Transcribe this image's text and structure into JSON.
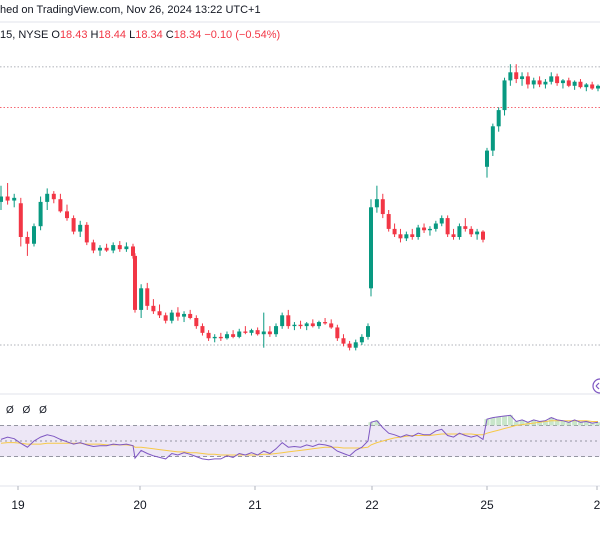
{
  "header": {
    "published_text": "hed on TradingView.com, Nov 26, 2024 13:22 UTC+1"
  },
  "ohlc": {
    "symbol_text": "15, NYSE",
    "o_label": "O",
    "o_value": "18.43",
    "h_label": "H",
    "h_value": "18.44",
    "l_label": "L",
    "l_value": "18.34",
    "c_label": "C",
    "c_value": "18.34",
    "change_text": "−0.10 (−0.54%)"
  },
  "oscillator": {
    "values_text": "Ø Ø Ø"
  },
  "colors": {
    "up": "#089981",
    "down": "#f23645",
    "rsi_line": "#7e57c2",
    "rsi_ma": "#f7c948",
    "band_fill": "#ede7f6"
  },
  "chart_data": {
    "type": "candlestick",
    "x_tick_labels": [
      "19",
      "20",
      "21",
      "22",
      "25",
      "2"
    ],
    "candles": [
      {
        "o": 25.6,
        "h": 26.8,
        "l": 25.0,
        "c": 26.0
      },
      {
        "o": 26.0,
        "h": 27.0,
        "l": 25.4,
        "c": 25.7
      },
      {
        "o": 25.7,
        "h": 26.2,
        "l": 25.2,
        "c": 25.9
      },
      {
        "o": 25.5,
        "h": 25.9,
        "l": 22.3,
        "c": 23.0
      },
      {
        "o": 23.0,
        "h": 23.4,
        "l": 21.6,
        "c": 22.5
      },
      {
        "o": 22.5,
        "h": 24.0,
        "l": 22.3,
        "c": 23.8
      },
      {
        "o": 23.8,
        "h": 26.0,
        "l": 23.5,
        "c": 25.6
      },
      {
        "o": 25.6,
        "h": 26.6,
        "l": 25.0,
        "c": 26.2
      },
      {
        "o": 26.2,
        "h": 26.4,
        "l": 25.5,
        "c": 25.8
      },
      {
        "o": 25.8,
        "h": 26.2,
        "l": 24.8,
        "c": 24.9
      },
      {
        "o": 24.9,
        "h": 25.4,
        "l": 24.2,
        "c": 24.4
      },
      {
        "o": 24.4,
        "h": 24.6,
        "l": 23.2,
        "c": 23.4
      },
      {
        "o": 23.4,
        "h": 24.2,
        "l": 23.0,
        "c": 23.9
      },
      {
        "o": 23.9,
        "h": 24.1,
        "l": 22.4,
        "c": 22.6
      },
      {
        "o": 22.6,
        "h": 22.8,
        "l": 21.8,
        "c": 22.0
      },
      {
        "o": 22.0,
        "h": 22.4,
        "l": 21.6,
        "c": 22.2
      },
      {
        "o": 22.2,
        "h": 22.5,
        "l": 21.9,
        "c": 22.0
      },
      {
        "o": 22.0,
        "h": 22.6,
        "l": 21.8,
        "c": 22.4
      },
      {
        "o": 22.4,
        "h": 22.7,
        "l": 21.9,
        "c": 22.1
      },
      {
        "o": 22.1,
        "h": 22.6,
        "l": 21.9,
        "c": 22.3
      },
      {
        "o": 22.3,
        "h": 22.5,
        "l": 21.4,
        "c": 21.6
      },
      {
        "o": 21.6,
        "h": 21.8,
        "l": 17.4,
        "c": 17.6
      },
      {
        "o": 17.6,
        "h": 19.5,
        "l": 17.0,
        "c": 19.2
      },
      {
        "o": 19.2,
        "h": 19.6,
        "l": 17.6,
        "c": 17.9
      },
      {
        "o": 17.9,
        "h": 18.4,
        "l": 17.3,
        "c": 17.5
      },
      {
        "o": 17.5,
        "h": 18.0,
        "l": 17.0,
        "c": 17.2
      },
      {
        "o": 17.2,
        "h": 17.4,
        "l": 16.6,
        "c": 16.8
      },
      {
        "o": 16.8,
        "h": 17.6,
        "l": 16.6,
        "c": 17.4
      },
      {
        "o": 17.4,
        "h": 17.8,
        "l": 16.8,
        "c": 17.1
      },
      {
        "o": 17.1,
        "h": 17.5,
        "l": 16.7,
        "c": 17.3
      },
      {
        "o": 17.3,
        "h": 17.6,
        "l": 16.9,
        "c": 17.0
      },
      {
        "o": 17.0,
        "h": 17.2,
        "l": 16.2,
        "c": 16.4
      },
      {
        "o": 16.4,
        "h": 16.6,
        "l": 15.7,
        "c": 15.9
      },
      {
        "o": 15.9,
        "h": 16.1,
        "l": 15.3,
        "c": 15.5
      },
      {
        "o": 15.5,
        "h": 15.8,
        "l": 15.2,
        "c": 15.6
      },
      {
        "o": 15.6,
        "h": 15.9,
        "l": 15.3,
        "c": 15.5
      },
      {
        "o": 15.5,
        "h": 16.0,
        "l": 15.4,
        "c": 15.8
      },
      {
        "o": 15.8,
        "h": 16.1,
        "l": 15.5,
        "c": 15.6
      },
      {
        "o": 15.6,
        "h": 16.2,
        "l": 15.5,
        "c": 16.0
      },
      {
        "o": 16.0,
        "h": 16.4,
        "l": 15.8,
        "c": 15.9
      },
      {
        "o": 15.9,
        "h": 16.2,
        "l": 15.7,
        "c": 16.1
      },
      {
        "o": 16.1,
        "h": 16.3,
        "l": 15.7,
        "c": 15.8
      },
      {
        "o": 15.8,
        "h": 17.4,
        "l": 14.8,
        "c": 16.0
      },
      {
        "o": 16.0,
        "h": 16.4,
        "l": 15.6,
        "c": 15.8
      },
      {
        "o": 15.8,
        "h": 16.6,
        "l": 15.6,
        "c": 16.4
      },
      {
        "o": 16.4,
        "h": 17.4,
        "l": 16.2,
        "c": 17.2
      },
      {
        "o": 17.2,
        "h": 17.6,
        "l": 16.2,
        "c": 16.4
      },
      {
        "o": 16.4,
        "h": 16.7,
        "l": 16.1,
        "c": 16.5
      },
      {
        "o": 16.5,
        "h": 16.8,
        "l": 16.2,
        "c": 16.4
      },
      {
        "o": 16.4,
        "h": 16.7,
        "l": 16.1,
        "c": 16.6
      },
      {
        "o": 16.6,
        "h": 16.9,
        "l": 16.3,
        "c": 16.4
      },
      {
        "o": 16.4,
        "h": 16.8,
        "l": 16.2,
        "c": 16.7
      },
      {
        "o": 16.7,
        "h": 17.0,
        "l": 16.5,
        "c": 16.6
      },
      {
        "o": 16.6,
        "h": 16.9,
        "l": 16.2,
        "c": 16.3
      },
      {
        "o": 16.3,
        "h": 16.5,
        "l": 15.3,
        "c": 15.5
      },
      {
        "o": 15.5,
        "h": 15.8,
        "l": 14.9,
        "c": 15.1
      },
      {
        "o": 15.1,
        "h": 15.3,
        "l": 14.6,
        "c": 14.8
      },
      {
        "o": 14.8,
        "h": 15.4,
        "l": 14.6,
        "c": 15.2
      },
      {
        "o": 15.2,
        "h": 15.8,
        "l": 15.0,
        "c": 15.6
      },
      {
        "o": 15.6,
        "h": 16.6,
        "l": 15.4,
        "c": 16.4
      },
      {
        "o": 19.2,
        "h": 25.8,
        "l": 18.6,
        "c": 25.2
      },
      {
        "o": 25.2,
        "h": 26.8,
        "l": 24.8,
        "c": 25.8
      },
      {
        "o": 25.8,
        "h": 26.2,
        "l": 24.4,
        "c": 24.7
      },
      {
        "o": 24.7,
        "h": 25.0,
        "l": 23.4,
        "c": 23.6
      },
      {
        "o": 23.6,
        "h": 24.0,
        "l": 23.0,
        "c": 23.2
      },
      {
        "o": 23.2,
        "h": 23.6,
        "l": 22.6,
        "c": 22.9
      },
      {
        "o": 22.9,
        "h": 23.4,
        "l": 22.7,
        "c": 23.2
      },
      {
        "o": 23.2,
        "h": 23.6,
        "l": 22.8,
        "c": 23.0
      },
      {
        "o": 23.0,
        "h": 23.9,
        "l": 22.8,
        "c": 23.7
      },
      {
        "o": 23.7,
        "h": 24.0,
        "l": 23.3,
        "c": 23.5
      },
      {
        "o": 23.5,
        "h": 23.8,
        "l": 23.1,
        "c": 23.6
      },
      {
        "o": 23.6,
        "h": 24.2,
        "l": 23.4,
        "c": 24.0
      },
      {
        "o": 24.0,
        "h": 24.6,
        "l": 23.8,
        "c": 24.4
      },
      {
        "o": 24.4,
        "h": 24.6,
        "l": 23.0,
        "c": 23.2
      },
      {
        "o": 23.2,
        "h": 23.6,
        "l": 22.8,
        "c": 23.0
      },
      {
        "o": 23.0,
        "h": 24.0,
        "l": 22.8,
        "c": 23.8
      },
      {
        "o": 23.8,
        "h": 24.4,
        "l": 23.4,
        "c": 23.6
      },
      {
        "o": 23.6,
        "h": 23.8,
        "l": 23.0,
        "c": 23.2
      },
      {
        "o": 23.2,
        "h": 23.6,
        "l": 22.8,
        "c": 23.4
      },
      {
        "o": 23.4,
        "h": 23.5,
        "l": 22.6,
        "c": 22.8
      },
      {
        "o": 28.2,
        "h": 29.6,
        "l": 27.4,
        "c": 29.4
      },
      {
        "o": 29.4,
        "h": 31.4,
        "l": 29.0,
        "c": 31.2
      },
      {
        "o": 31.2,
        "h": 32.6,
        "l": 30.8,
        "c": 32.4
      },
      {
        "o": 32.4,
        "h": 34.8,
        "l": 32.0,
        "c": 34.6
      },
      {
        "o": 34.6,
        "h": 35.8,
        "l": 34.2,
        "c": 35.2
      },
      {
        "o": 35.2,
        "h": 35.8,
        "l": 34.4,
        "c": 34.7
      },
      {
        "o": 34.7,
        "h": 35.2,
        "l": 34.2,
        "c": 34.9
      },
      {
        "o": 34.9,
        "h": 35.2,
        "l": 34.0,
        "c": 34.3
      },
      {
        "o": 34.3,
        "h": 34.8,
        "l": 34.0,
        "c": 34.6
      },
      {
        "o": 34.6,
        "h": 34.9,
        "l": 34.1,
        "c": 34.3
      },
      {
        "o": 34.3,
        "h": 34.7,
        "l": 34.0,
        "c": 34.5
      },
      {
        "o": 34.5,
        "h": 35.2,
        "l": 34.3,
        "c": 34.9
      },
      {
        "o": 34.9,
        "h": 35.1,
        "l": 34.2,
        "c": 34.4
      },
      {
        "o": 34.4,
        "h": 34.7,
        "l": 34.0,
        "c": 34.6
      },
      {
        "o": 34.6,
        "h": 34.8,
        "l": 34.1,
        "c": 34.2
      },
      {
        "o": 34.2,
        "h": 34.6,
        "l": 33.9,
        "c": 34.5
      },
      {
        "o": 34.5,
        "h": 34.7,
        "l": 34.0,
        "c": 34.1
      },
      {
        "o": 34.1,
        "h": 34.4,
        "l": 33.8,
        "c": 34.3
      },
      {
        "o": 34.3,
        "h": 34.5,
        "l": 33.9,
        "c": 34.0
      },
      {
        "o": 34.0,
        "h": 34.3,
        "l": 33.8,
        "c": 34.2
      }
    ],
    "rsi": [
      52,
      55,
      53,
      47,
      42,
      50,
      55,
      58,
      56,
      52,
      49,
      46,
      48,
      45,
      43,
      44,
      44,
      46,
      45,
      46,
      44,
      28,
      38,
      34,
      31,
      29,
      27,
      34,
      32,
      35,
      33,
      30,
      27,
      26,
      27,
      27,
      31,
      29,
      34,
      32,
      35,
      32,
      37,
      34,
      40,
      48,
      42,
      43,
      42,
      45,
      43,
      46,
      45,
      43,
      37,
      34,
      31,
      38,
      42,
      50,
      74,
      76,
      67,
      60,
      58,
      55,
      58,
      56,
      60,
      58,
      58,
      63,
      65,
      57,
      55,
      60,
      57,
      55,
      57,
      52,
      78,
      80,
      81,
      82,
      83,
      75,
      77,
      74,
      77,
      75,
      76,
      80,
      77,
      76,
      74,
      77,
      74,
      75,
      73,
      74
    ],
    "rsi_ma": [
      47,
      48,
      48,
      47,
      46,
      46,
      46,
      47,
      47,
      47,
      47,
      47,
      47,
      46,
      46,
      46,
      45,
      45,
      45,
      45,
      44,
      42,
      42,
      41,
      40,
      39,
      38,
      37,
      36,
      36,
      35,
      35,
      34,
      33,
      33,
      32,
      32,
      32,
      32,
      32,
      32,
      32,
      33,
      33,
      34,
      35,
      36,
      37,
      38,
      39,
      40,
      41,
      42,
      42,
      42,
      41,
      41,
      41,
      41,
      42,
      45,
      48,
      50,
      52,
      54,
      55,
      56,
      57,
      57,
      57,
      57,
      58,
      59,
      59,
      59,
      59,
      59,
      59,
      58,
      58,
      60,
      62,
      64,
      66,
      68,
      70,
      71,
      72,
      73,
      74,
      75,
      76,
      76,
      76,
      76,
      76,
      76,
      76,
      75,
      75
    ],
    "rsi_band": [
      30,
      70
    ],
    "price_levels_dotted": [
      35.6,
      32.6,
      15.0
    ]
  }
}
